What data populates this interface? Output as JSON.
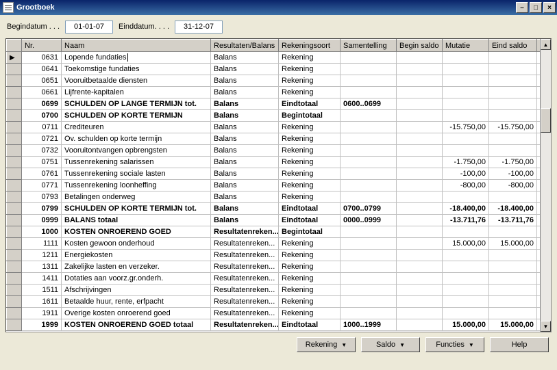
{
  "window": {
    "title": "Grootboek"
  },
  "dates": {
    "begin_label": "Begindatum . . .",
    "begin_value": "01-01-07",
    "end_label": "Einddatum. . . .",
    "end_value": "31-12-07"
  },
  "columns": {
    "nr": "Nr.",
    "naam": "Naam",
    "rb": "Resultaten/Balans",
    "rs": "Rekeningsoort",
    "sam": "Samentelling",
    "bs": "Begin saldo",
    "mut": "Mutatie",
    "es": "Eind saldo"
  },
  "rows": [
    {
      "nr": "0631",
      "naam": "Lopende fundaties",
      "rb": "Balans",
      "rs": "Rekening",
      "sam": "",
      "bs": "",
      "mut": "",
      "es": "",
      "bold": false,
      "ptr": true
    },
    {
      "nr": "0641",
      "naam": "Toekomstige fundaties",
      "rb": "Balans",
      "rs": "Rekening",
      "sam": "",
      "bs": "",
      "mut": "",
      "es": "",
      "bold": false
    },
    {
      "nr": "0651",
      "naam": "Vooruitbetaalde diensten",
      "rb": "Balans",
      "rs": "Rekening",
      "sam": "",
      "bs": "",
      "mut": "",
      "es": "",
      "bold": false
    },
    {
      "nr": "0661",
      "naam": "Lijfrente-kapitalen",
      "rb": "Balans",
      "rs": "Rekening",
      "sam": "",
      "bs": "",
      "mut": "",
      "es": "",
      "bold": false
    },
    {
      "nr": "0699",
      "naam": "SCHULDEN OP LANGE TERMIJN tot.",
      "rb": "Balans",
      "rs": "Eindtotaal",
      "sam": "0600..0699",
      "bs": "",
      "mut": "",
      "es": "",
      "bold": true
    },
    {
      "nr": "0700",
      "naam": "SCHULDEN OP KORTE TERMIJN",
      "rb": "Balans",
      "rs": "Begintotaal",
      "sam": "",
      "bs": "",
      "mut": "",
      "es": "",
      "bold": true
    },
    {
      "nr": "0711",
      "naam": "Crediteuren",
      "rb": "Balans",
      "rs": "Rekening",
      "sam": "",
      "bs": "",
      "mut": "-15.750,00",
      "es": "-15.750,00",
      "bold": false
    },
    {
      "nr": "0721",
      "naam": "Ov. schulden op korte termijn",
      "rb": "Balans",
      "rs": "Rekening",
      "sam": "",
      "bs": "",
      "mut": "",
      "es": "",
      "bold": false
    },
    {
      "nr": "0732",
      "naam": "Vooruitontvangen opbrengsten",
      "rb": "Balans",
      "rs": "Rekening",
      "sam": "",
      "bs": "",
      "mut": "",
      "es": "",
      "bold": false
    },
    {
      "nr": "0751",
      "naam": "Tussenrekening salarissen",
      "rb": "Balans",
      "rs": "Rekening",
      "sam": "",
      "bs": "",
      "mut": "-1.750,00",
      "es": "-1.750,00",
      "bold": false
    },
    {
      "nr": "0761",
      "naam": "Tussenrekening sociale lasten",
      "rb": "Balans",
      "rs": "Rekening",
      "sam": "",
      "bs": "",
      "mut": "-100,00",
      "es": "-100,00",
      "bold": false
    },
    {
      "nr": "0771",
      "naam": "Tussenrekening loonheffing",
      "rb": "Balans",
      "rs": "Rekening",
      "sam": "",
      "bs": "",
      "mut": "-800,00",
      "es": "-800,00",
      "bold": false
    },
    {
      "nr": "0793",
      "naam": "Betalingen onderweg",
      "rb": "Balans",
      "rs": "Rekening",
      "sam": "",
      "bs": "",
      "mut": "",
      "es": "",
      "bold": false
    },
    {
      "nr": "0799",
      "naam": "SCHULDEN OP KORTE TERMIJN tot.",
      "rb": "Balans",
      "rs": "Eindtotaal",
      "sam": "0700..0799",
      "bs": "",
      "mut": "-18.400,00",
      "es": "-18.400,00",
      "bold": true
    },
    {
      "nr": "0999",
      "naam": "BALANS totaal",
      "rb": "Balans",
      "rs": "Eindtotaal",
      "sam": "0000..0999",
      "bs": "",
      "mut": "-13.711,76",
      "es": "-13.711,76",
      "bold": true
    },
    {
      "nr": "1000",
      "naam": "KOSTEN ONROEREND GOED",
      "rb": "Resultatenreken...",
      "rs": "Begintotaal",
      "sam": "",
      "bs": "",
      "mut": "",
      "es": "",
      "bold": true
    },
    {
      "nr": "1111",
      "naam": "Kosten gewoon onderhoud",
      "rb": "Resultatenreken...",
      "rs": "Rekening",
      "sam": "",
      "bs": "",
      "mut": "15.000,00",
      "es": "15.000,00",
      "bold": false
    },
    {
      "nr": "1211",
      "naam": "Energiekosten",
      "rb": "Resultatenreken...",
      "rs": "Rekening",
      "sam": "",
      "bs": "",
      "mut": "",
      "es": "",
      "bold": false
    },
    {
      "nr": "1311",
      "naam": "Zakelijke lasten en verzeker.",
      "rb": "Resultatenreken...",
      "rs": "Rekening",
      "sam": "",
      "bs": "",
      "mut": "",
      "es": "",
      "bold": false
    },
    {
      "nr": "1411",
      "naam": "Dotaties aan voorz.gr.onderh.",
      "rb": "Resultatenreken...",
      "rs": "Rekening",
      "sam": "",
      "bs": "",
      "mut": "",
      "es": "",
      "bold": false
    },
    {
      "nr": "1511",
      "naam": "Afschrijvingen",
      "rb": "Resultatenreken...",
      "rs": "Rekening",
      "sam": "",
      "bs": "",
      "mut": "",
      "es": "",
      "bold": false
    },
    {
      "nr": "1611",
      "naam": "Betaalde huur, rente, erfpacht",
      "rb": "Resultatenreken...",
      "rs": "Rekening",
      "sam": "",
      "bs": "",
      "mut": "",
      "es": "",
      "bold": false
    },
    {
      "nr": "1911",
      "naam": "Overige kosten onroerend goed",
      "rb": "Resultatenreken...",
      "rs": "Rekening",
      "sam": "",
      "bs": "",
      "mut": "",
      "es": "",
      "bold": false
    },
    {
      "nr": "1999",
      "naam": "KOSTEN ONROEREND GOED totaal",
      "rb": "Resultatenreken...",
      "rs": "Eindtotaal",
      "sam": "1000..1999",
      "bs": "",
      "mut": "15.000,00",
      "es": "15.000,00",
      "bold": true
    }
  ],
  "buttons": {
    "rekening": "Rekening",
    "saldo": "Saldo",
    "functies": "Functies",
    "help": "Help"
  }
}
